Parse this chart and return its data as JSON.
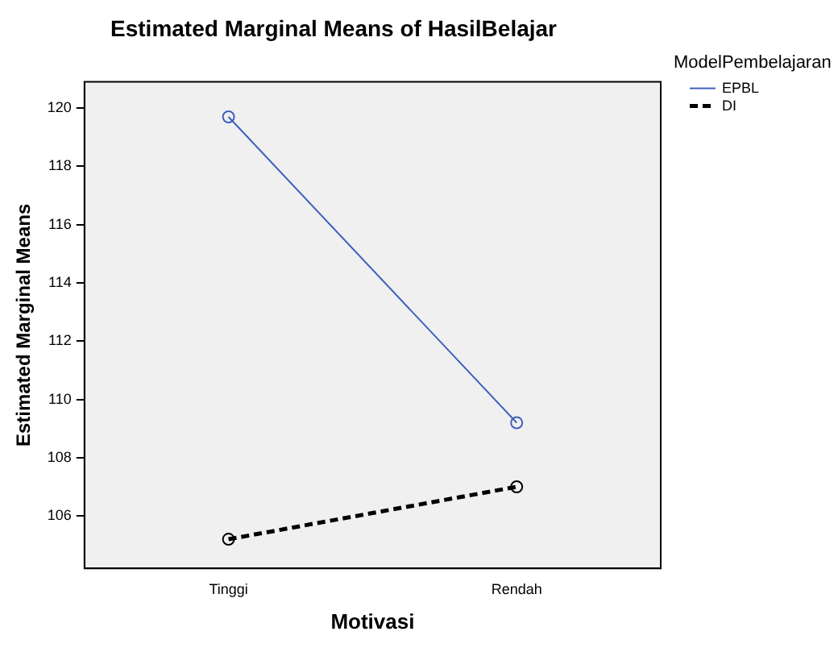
{
  "chart_data": {
    "type": "line",
    "title": "Estimated Marginal Means of HasilBelajar",
    "xlabel": "Motivasi",
    "ylabel": "Estimated Marginal Means",
    "legend_title": "ModelPembelajaran",
    "categories": [
      "Tinggi",
      "Rendah"
    ],
    "series": [
      {
        "name": "EPBL",
        "color": "#3f5fbf",
        "values": [
          119.7,
          109.2
        ],
        "line_style": "solid"
      },
      {
        "name": "DI",
        "color": "#000000",
        "values": [
          105.2,
          107.0
        ],
        "line_style": "dashed"
      }
    ],
    "ylim": [
      104.2,
      120.9
    ],
    "yticks": [
      106,
      108,
      110,
      112,
      114,
      116,
      118,
      120
    ],
    "grid": false,
    "legend": "right",
    "marker": "circle"
  }
}
